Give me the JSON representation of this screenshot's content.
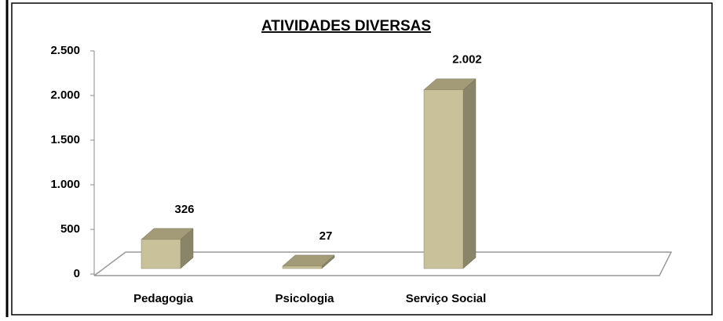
{
  "chart_data": {
    "type": "bar",
    "title": "ATIVIDADES DIVERSAS",
    "categories": [
      "Pedagogia",
      "Psicologia",
      "Serviço Social",
      null
    ],
    "values": [
      326,
      27,
      2002,
      null
    ],
    "value_labels": [
      "326",
      "27",
      "2.002",
      null
    ],
    "color": "#c9c199",
    "ylim": [
      0,
      2500
    ],
    "yticks": [
      0,
      500,
      {
        "value": 1000,
        "label": "1.000"
      },
      {
        "value": 1500,
        "label": "1.500"
      },
      {
        "value": 2000,
        "label": "2.000"
      },
      {
        "value": 2500,
        "label": "2.500"
      }
    ]
  }
}
